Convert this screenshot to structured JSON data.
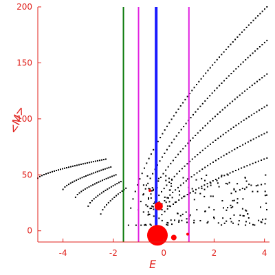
{
  "chart_data": {
    "type": "scatter",
    "title": "",
    "xlabel": "E",
    "ylabel": "<M>",
    "xlim": [
      -5,
      4.2
    ],
    "ylim": [
      -10,
      200
    ],
    "xticks": [
      -4,
      -2,
      0,
      2,
      4
    ],
    "xtick_labels": [
      "-4",
      "-2",
      "0",
      "2",
      "4"
    ],
    "yticks": [
      0,
      50,
      100,
      150,
      200
    ],
    "ytick_labels": [
      "0",
      "50",
      "100",
      "150",
      "200"
    ],
    "grid": false,
    "legend": "none",
    "colors": {
      "axis": "#e0201b",
      "ticks": "#e0201b",
      "points": "#000000",
      "blobs": "#ff0000",
      "green_line": "#0a7a0a",
      "magenta_line": "#e020e0",
      "blue_line": "#1a1aff"
    },
    "vertical_lines": [
      {
        "x": -1.6,
        "color": "#0a7a0a",
        "weight": "thin"
      },
      {
        "x": -1.0,
        "color": "#e020e0",
        "weight": "thin"
      },
      {
        "x": -0.3,
        "color": "#1a1aff",
        "weight": "thick"
      },
      {
        "x": 1.0,
        "color": "#e020e0",
        "weight": "thin"
      }
    ],
    "curves": [
      {
        "x_start": -1.4,
        "x_end": 4.1,
        "y_start": 5,
        "y_end": 200,
        "shape": 0.62,
        "count": 62
      },
      {
        "x_start": -1.1,
        "x_end": 4.1,
        "y_start": 5,
        "y_end": 170,
        "shape": 0.62,
        "count": 56
      },
      {
        "x_start": -0.9,
        "x_end": 4.1,
        "y_start": 5,
        "y_end": 140,
        "shape": 0.62,
        "count": 52
      },
      {
        "x_start": -0.7,
        "x_end": 4.1,
        "y_start": 5,
        "y_end": 112,
        "shape": 0.62,
        "count": 48
      },
      {
        "x_start": -0.5,
        "x_end": 4.1,
        "y_start": 5,
        "y_end": 88,
        "shape": 0.62,
        "count": 44
      },
      {
        "x_start": -0.3,
        "x_end": 4.1,
        "y_start": 5,
        "y_end": 65,
        "shape": 0.62,
        "count": 40
      },
      {
        "x_start": -5.0,
        "x_end": -2.3,
        "y_start": 47,
        "y_end": 64,
        "shape": 0.7,
        "count": 34
      },
      {
        "x_start": -4.0,
        "x_end": -2.1,
        "y_start": 37,
        "y_end": 57,
        "shape": 0.7,
        "count": 26
      },
      {
        "x_start": -3.5,
        "x_end": -1.9,
        "y_start": 30,
        "y_end": 50,
        "shape": 0.7,
        "count": 22
      },
      {
        "x_start": -3.0,
        "x_end": -1.7,
        "y_start": 22,
        "y_end": 44,
        "shape": 0.7,
        "count": 18
      },
      {
        "x_start": -2.5,
        "x_end": -1.5,
        "y_start": 15,
        "y_end": 38,
        "shape": 0.7,
        "count": 14
      }
    ],
    "noise_cluster": {
      "x_range": [
        -0.8,
        4.1
      ],
      "y_range": [
        5,
        50
      ],
      "count": 180
    },
    "blobs": [
      {
        "x": -0.25,
        "y": -4,
        "size": "large"
      },
      {
        "x": -0.2,
        "y": 22,
        "size": "medium"
      },
      {
        "x": 0.4,
        "y": -6,
        "size": "small"
      },
      {
        "x": 0.95,
        "y": -3,
        "size": "tiny"
      },
      {
        "x": -0.55,
        "y": 36,
        "size": "tiny"
      }
    ]
  }
}
